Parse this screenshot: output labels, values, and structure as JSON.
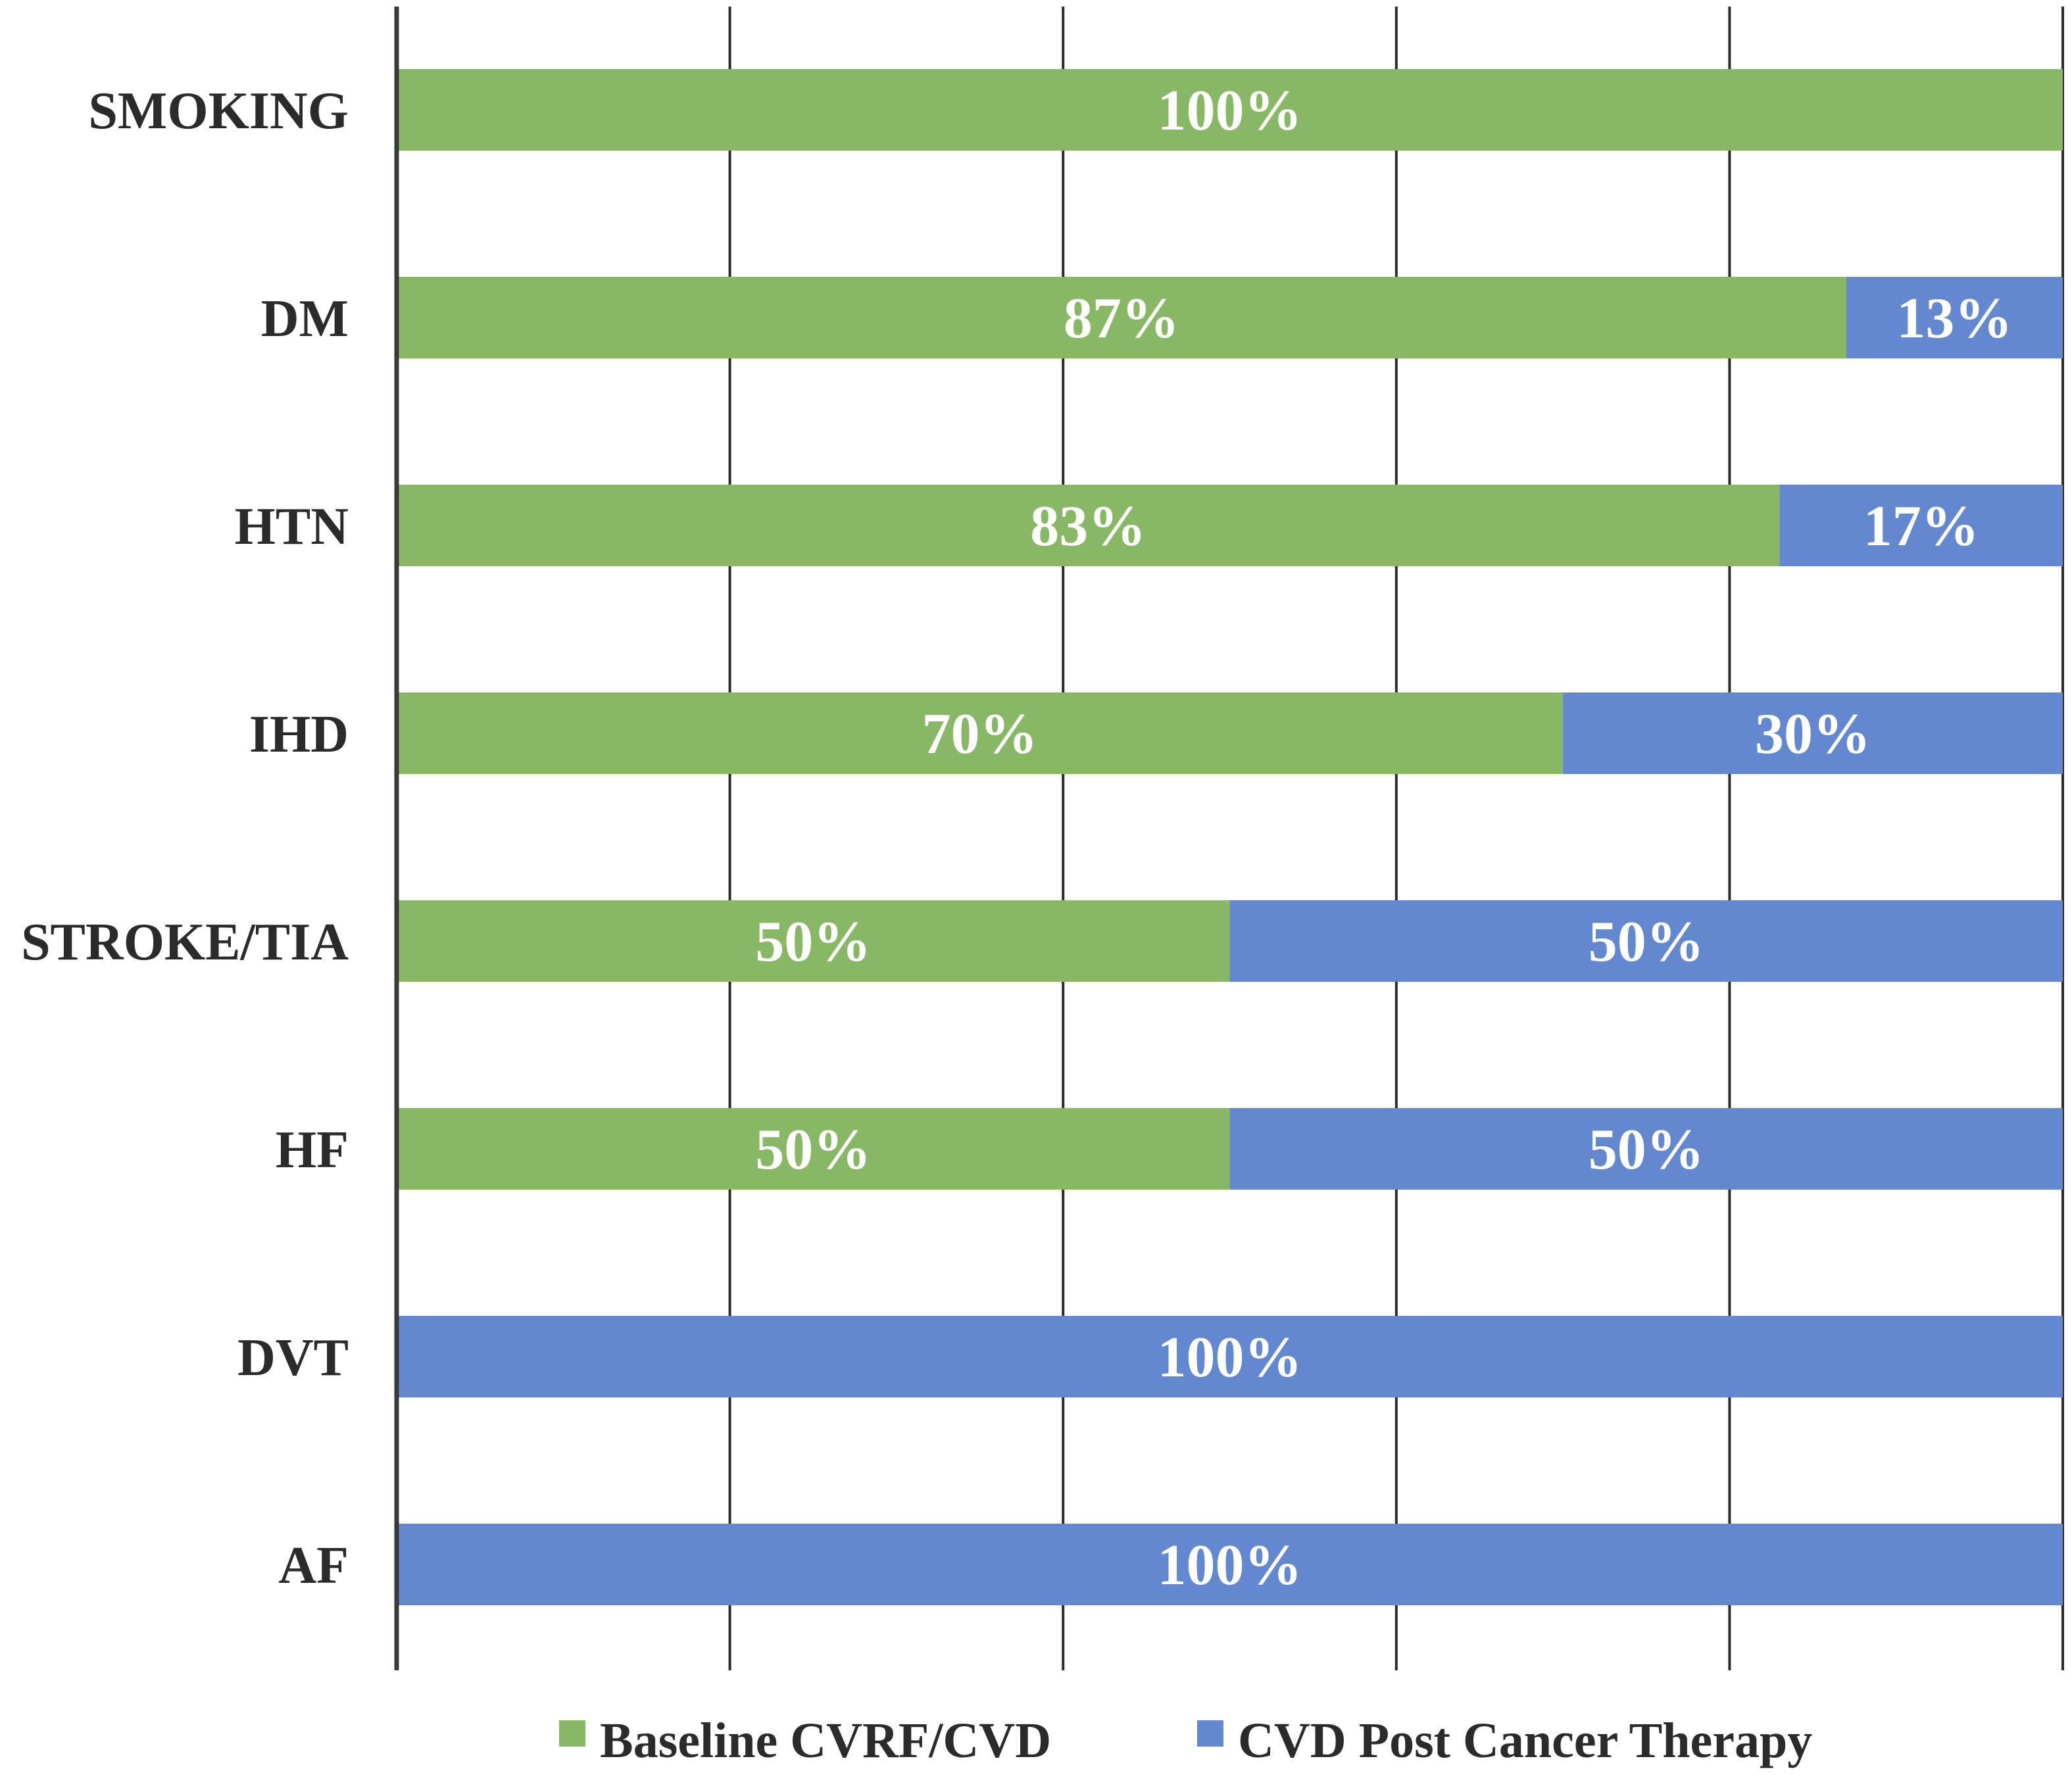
{
  "chart_data": {
    "type": "bar",
    "orientation": "horizontal",
    "stacked": true,
    "title": "",
    "xlabel": "",
    "ylabel": "",
    "xlim": [
      0,
      100
    ],
    "grid": true,
    "legend_position": "bottom",
    "categories": [
      "SMOKING",
      "DM",
      "HTN",
      "IHD",
      "STROKE/TIA",
      "HF",
      "DVT",
      "AF"
    ],
    "series": [
      {
        "name": "Baseline CVRF/CVD",
        "color": "#88b865",
        "values": [
          100,
          87,
          83,
          70,
          50,
          50,
          0,
          0
        ],
        "labels": [
          "100%",
          "87%",
          "83%",
          "70%",
          "50%",
          "50%",
          "",
          ""
        ]
      },
      {
        "name": "CVD Post Cancer Therapy",
        "color": "#6488cf",
        "values": [
          0,
          13,
          17,
          30,
          50,
          50,
          100,
          100
        ],
        "labels": [
          "",
          "13%",
          "17%",
          "30%",
          "50%",
          "50%",
          "100%",
          "100%"
        ]
      }
    ]
  }
}
